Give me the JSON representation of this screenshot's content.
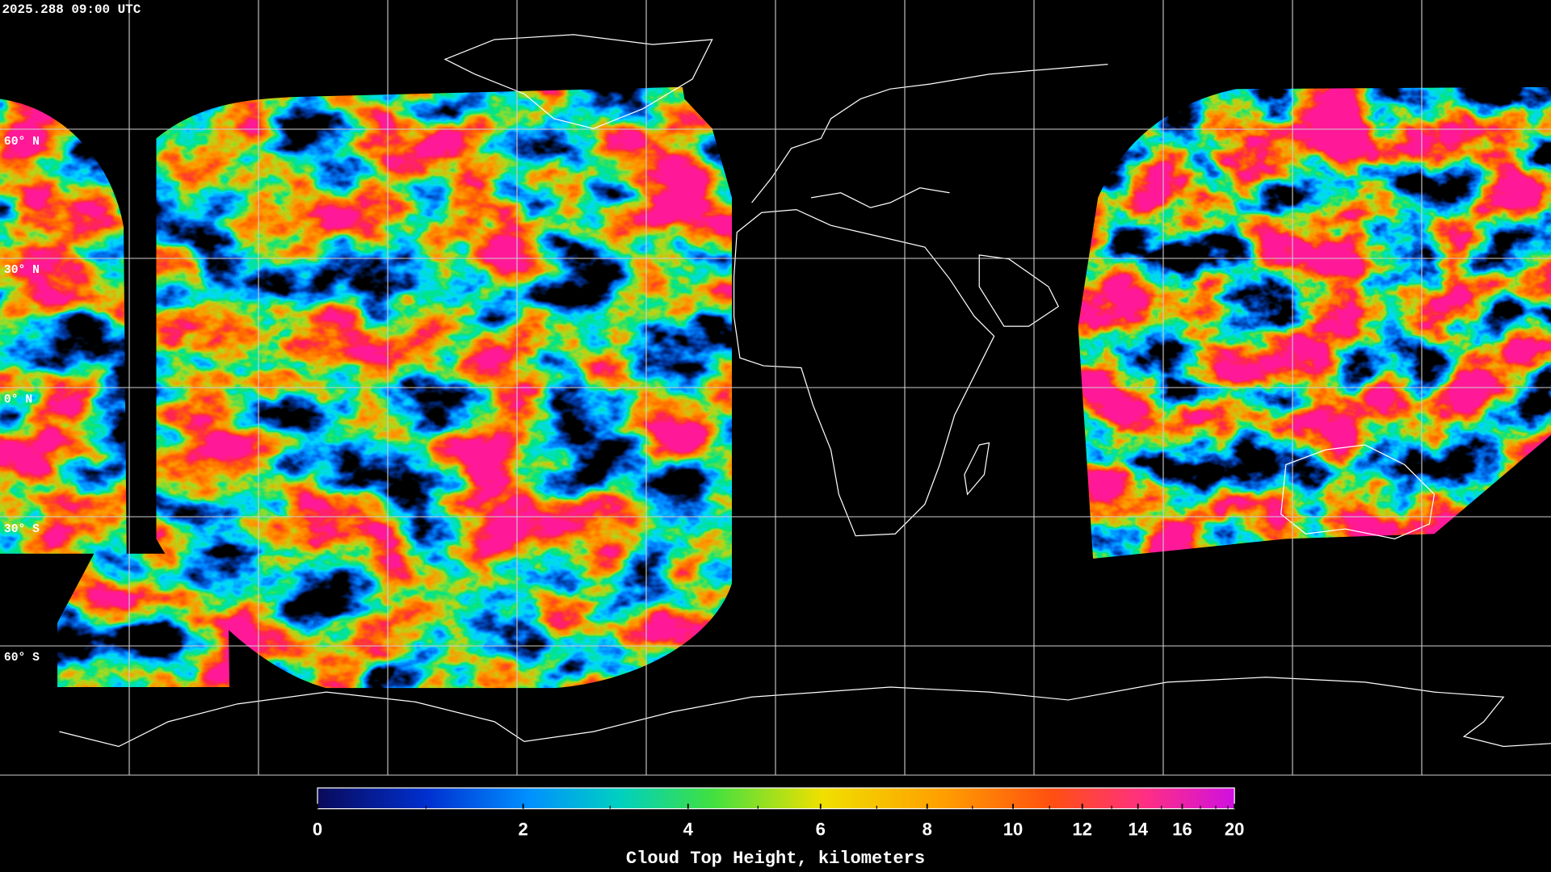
{
  "timestamp": "2025.288 09:00 UTC",
  "latitude_labels": [
    "60° N",
    "30° N",
    "0° N",
    "30° S",
    "60° S"
  ],
  "colorbar": {
    "label": "Cloud Top Height, kilometers",
    "range": [
      0,
      20
    ],
    "ticks": [
      0,
      2,
      4,
      6,
      8,
      10,
      12,
      14,
      16,
      20
    ],
    "minor_ticks": [
      1,
      3,
      5,
      7,
      9,
      11,
      13,
      15,
      17,
      18,
      19
    ]
  }
}
